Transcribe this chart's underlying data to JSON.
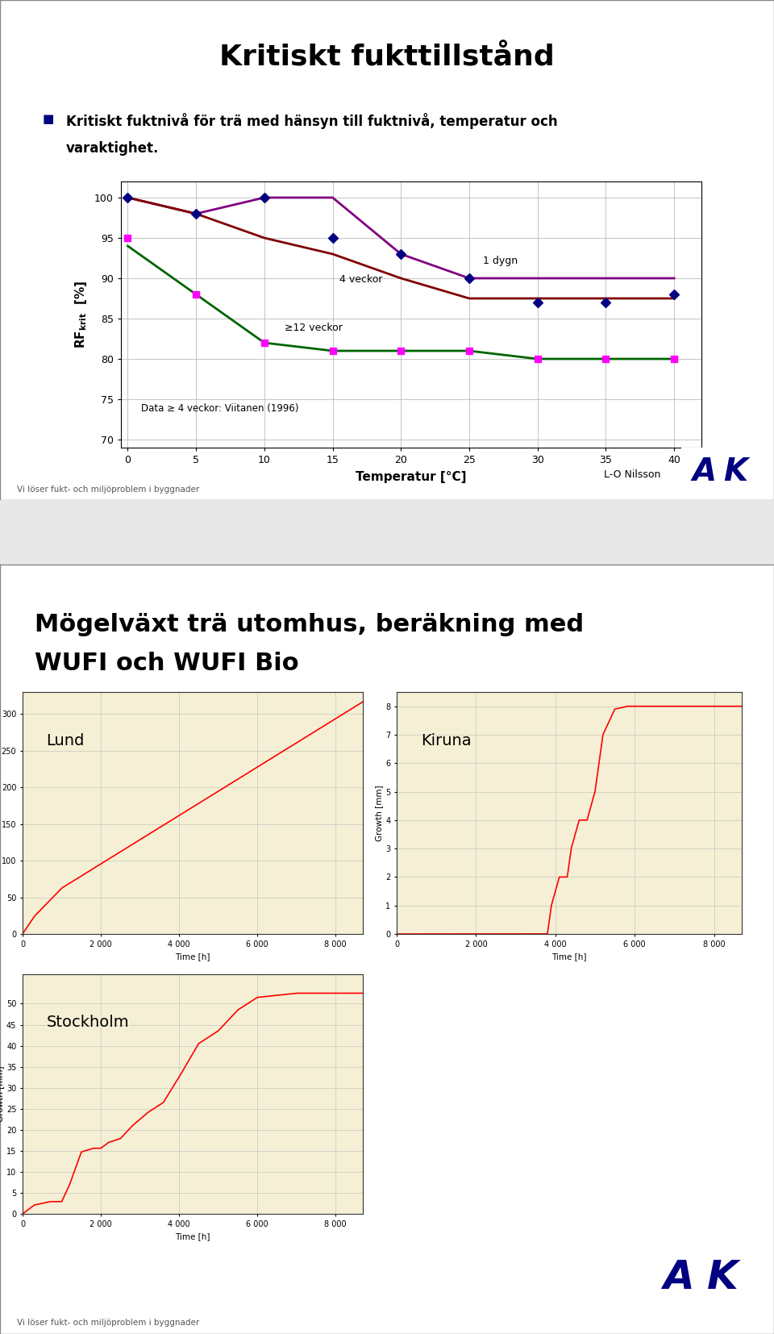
{
  "slide1_title": "Kritiskt fukttillstånd",
  "slide1_bullet1": "Kritiskt fuktnivå för trä med hänsyn till fuktnivå, temperatur och",
  "slide1_bullet2": "varaktighet.",
  "slide1_xlabel": "Temperatur [°C]",
  "slide1_annotation": "Data ≥ 4 veckor: Viitanen (1996)",
  "slide1_author": "L-O Nilsson",
  "footer_text": "Vi löser fukt- och miljöproblem i byggnader",
  "line_1dygn_x": [
    0,
    5,
    10,
    15,
    20,
    25,
    30,
    35,
    40
  ],
  "line_1dygn_y": [
    100,
    98,
    100,
    100,
    93,
    90,
    90,
    90,
    90
  ],
  "line_1dygn_color": "#800080",
  "line_4veckor_x": [
    0,
    5,
    10,
    15,
    20,
    25,
    30,
    35,
    40
  ],
  "line_4veckor_y": [
    100,
    98,
    95,
    93,
    90,
    87.5,
    87.5,
    87.5,
    87.5
  ],
  "line_4veckor_color": "#800000",
  "line_12veckor_x": [
    0,
    5,
    10,
    15,
    20,
    25,
    30,
    35,
    40
  ],
  "line_12veckor_y": [
    94,
    88,
    82,
    81,
    81,
    81,
    80,
    80,
    80
  ],
  "line_12veckor_color": "#006400",
  "markers_blue_x": [
    0,
    5,
    10,
    15,
    20,
    25,
    30,
    35,
    40
  ],
  "markers_blue_y": [
    100,
    98,
    100,
    95,
    93,
    90,
    87,
    87,
    88
  ],
  "markers_blue_color": "#000080",
  "markers_magenta_x": [
    0,
    5,
    10,
    15,
    20,
    25,
    30,
    35,
    40
  ],
  "markers_magenta_y": [
    95,
    88,
    82,
    81,
    81,
    81,
    80,
    80,
    80
  ],
  "markers_magenta_color": "#ff00ff",
  "slide2_title_line1": "Mögelväxt trä utomhus, beräkning med",
  "slide2_title_line2": "WUFI och WUFI Bio",
  "lund_label": "Lund",
  "kiruna_label": "Kiruna",
  "stockholm_label": "Stockholm",
  "chart_bg": "#f5f0d5",
  "slide_bg": "#ffffff",
  "ak_color": "#000080",
  "slide1_border": "#888888",
  "slide2_border": "#888888"
}
